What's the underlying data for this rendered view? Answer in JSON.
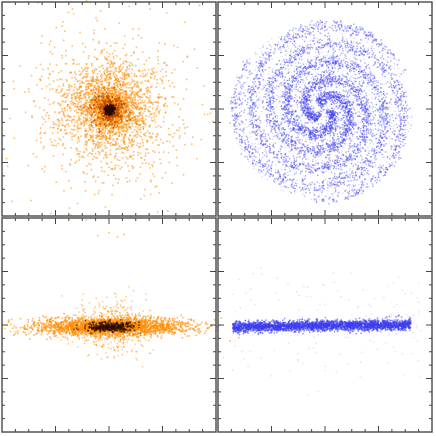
{
  "panels": [
    {
      "color": "#ff8c00"
    },
    {
      "color": "#3c3cf0"
    },
    {
      "color": "#ff8c00"
    },
    {
      "color": "#3c3cf0"
    }
  ]
}
